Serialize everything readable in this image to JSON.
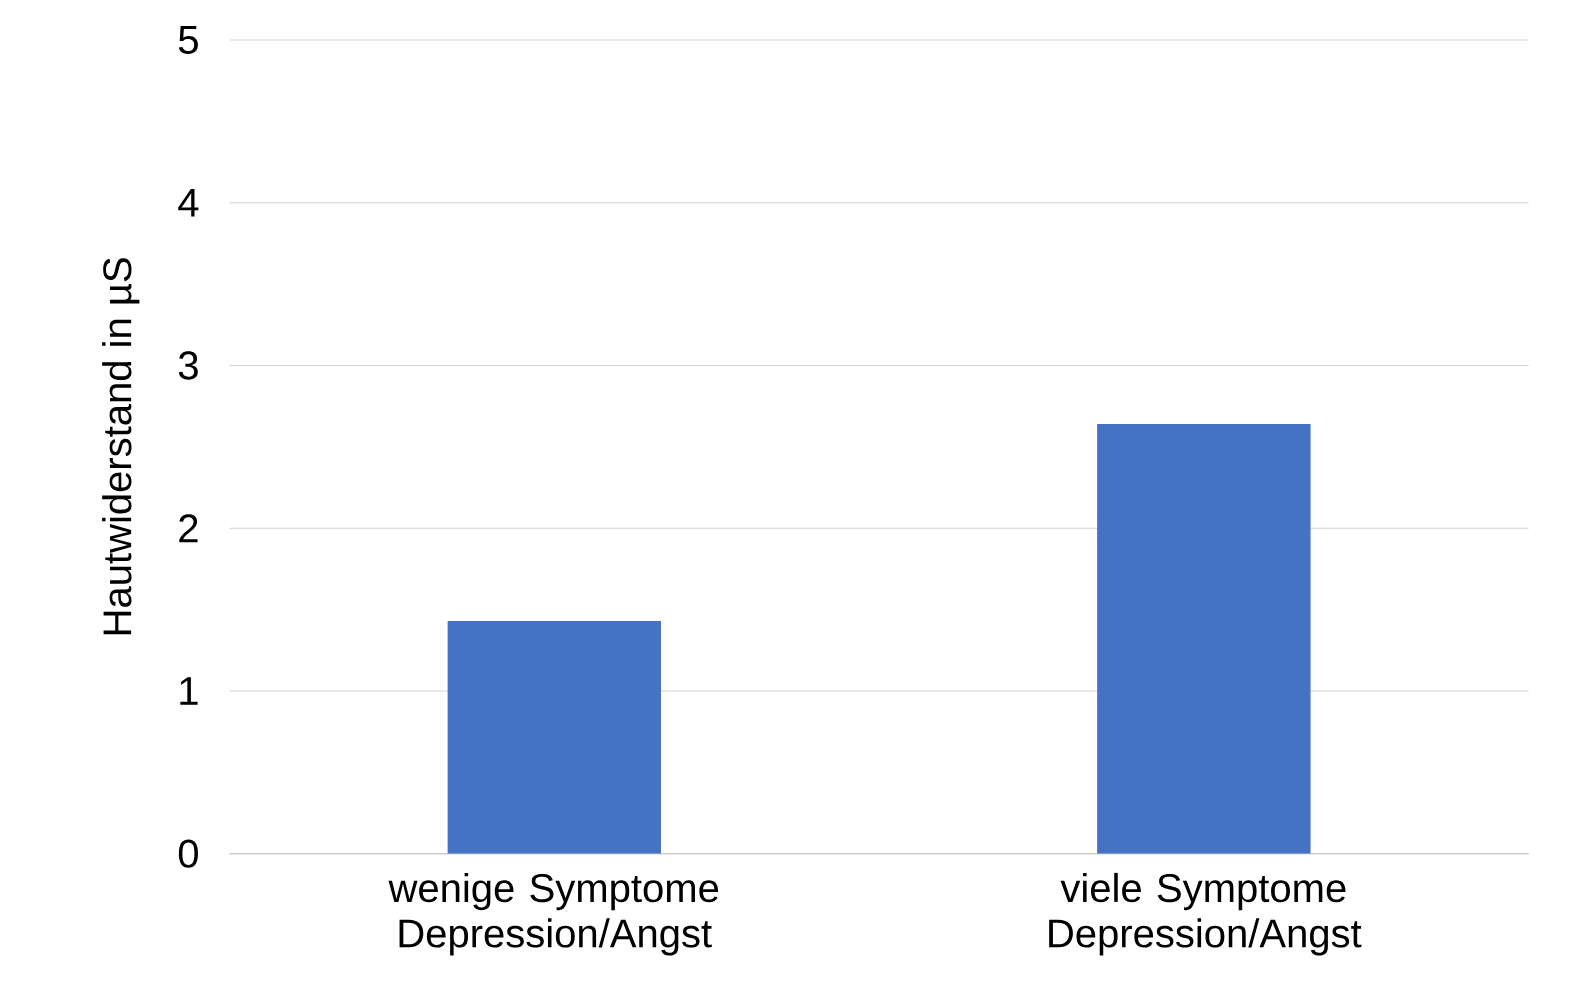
{
  "chart_data": {
    "type": "bar",
    "ylabel": "Hautwiderstand in µS",
    "categories": [
      "wenige Symptome Depression/Angst",
      "viele Symptome Depression/Angst"
    ],
    "values": [
      1.43,
      2.64
    ],
    "color": "#4472c4",
    "ylim": [
      0,
      5
    ],
    "yticks": [
      0,
      1,
      2,
      3,
      4,
      5
    ],
    "grid": "y"
  }
}
